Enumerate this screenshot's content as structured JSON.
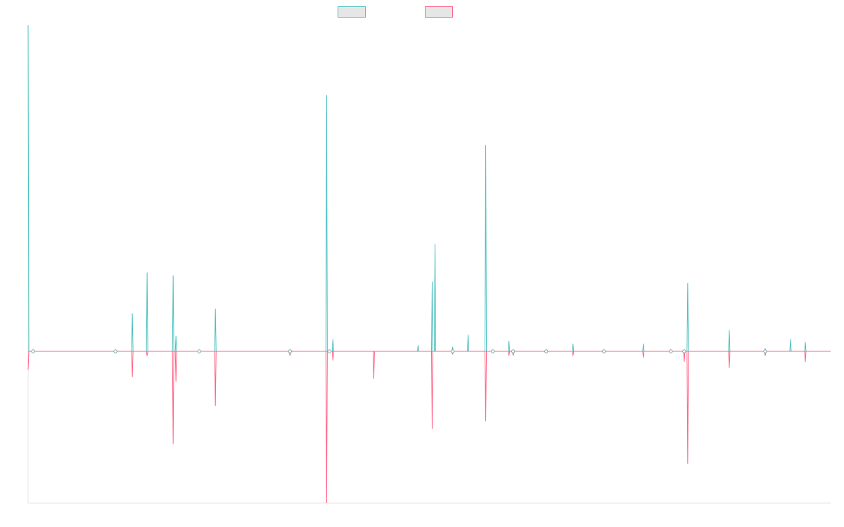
{
  "chart_data": {
    "type": "line",
    "title": "",
    "xlabel": "",
    "ylabel": "",
    "ylim": [
      -100,
      100
    ],
    "grid": false,
    "legend_position": "top-center",
    "x": [
      0,
      1,
      2,
      3,
      4,
      5,
      6,
      7,
      8,
      9,
      10,
      11,
      12,
      13,
      14,
      15,
      16,
      17,
      18,
      19,
      20,
      21,
      22,
      23,
      24,
      25,
      26,
      27,
      28,
      29,
      30,
      31,
      32,
      33,
      34,
      35,
      36,
      37,
      38,
      39,
      40,
      41,
      42,
      43,
      44,
      45,
      46,
      47,
      48,
      49,
      50,
      51,
      52,
      53,
      54,
      55,
      56,
      57,
      58,
      59,
      60,
      61,
      62,
      63,
      64,
      65,
      66,
      67,
      68,
      69,
      70,
      71,
      72,
      73,
      74,
      75,
      76,
      77,
      78,
      79,
      80,
      81,
      82,
      83,
      84,
      85,
      86,
      87,
      88,
      89,
      90,
      91,
      92,
      93,
      94,
      95,
      96,
      97,
      98,
      99,
      100,
      101,
      102,
      103,
      104,
      105,
      106,
      107,
      108,
      109,
      110,
      111,
      112,
      113,
      114,
      115,
      116,
      117,
      118,
      119,
      120,
      121,
      122,
      123,
      124,
      125,
      126,
      127,
      128,
      129,
      130,
      131,
      132,
      133,
      134,
      135,
      136,
      137,
      138,
      139,
      140,
      141,
      142,
      143,
      144,
      145,
      146,
      147,
      148,
      149,
      150,
      151,
      152,
      153,
      154,
      155,
      156,
      157,
      158,
      159,
      160,
      161,
      162,
      163,
      164,
      165,
      166,
      167,
      168,
      169,
      170,
      171,
      172,
      173,
      174,
      175,
      176,
      177,
      178,
      179,
      180,
      181,
      182,
      183,
      184,
      185,
      186,
      187,
      188,
      189,
      190,
      191,
      192,
      193,
      194,
      195,
      196,
      197,
      198,
      199,
      200,
      201,
      202,
      203,
      204,
      205,
      206,
      207,
      208,
      209,
      210,
      211,
      212,
      213,
      214,
      215,
      216,
      217,
      218,
      219,
      220,
      221,
      222,
      223,
      224,
      225,
      226,
      227,
      228,
      229,
      230,
      231,
      232,
      233,
      234,
      235,
      236,
      237,
      238,
      239,
      240,
      241,
      242,
      243,
      244,
      245,
      246,
      247,
      248,
      249,
      250,
      251,
      252,
      253,
      254,
      255,
      256,
      257,
      258,
      259,
      260,
      261,
      262,
      263,
      264,
      265,
      266,
      267,
      268,
      269,
      270,
      271,
      272,
      273,
      274,
      275,
      276,
      277,
      278,
      279,
      280,
      281,
      282,
      283,
      284,
      285,
      286,
      287,
      288,
      289,
      290,
      291,
      292,
      293,
      294,
      295,
      296,
      297,
      298,
      299,
      300,
      301,
      302,
      303,
      304,
      305,
      306,
      307,
      308,
      309,
      310,
      311,
      312,
      313,
      314,
      315,
      316,
      317,
      318,
      319,
      320,
      321,
      322,
      323,
      324,
      325,
      326,
      327,
      328,
      329,
      330,
      331,
      332,
      333,
      334,
      335,
      336,
      337,
      338,
      339,
      340,
      341,
      342,
      343,
      344,
      345,
      346,
      347,
      348,
      349,
      350,
      351,
      352,
      353,
      354,
      355,
      356,
      357,
      358,
      359,
      360,
      361,
      362,
      363,
      364,
      365,
      366,
      367,
      368,
      369,
      370,
      371,
      372,
      373,
      374,
      375,
      376,
      377,
      378,
      379,
      380,
      381,
      382,
      383,
      384,
      385,
      386,
      387,
      388,
      389,
      390,
      391,
      392,
      393,
      394,
      395,
      396,
      397,
      398,
      399,
      400,
      401,
      402,
      403,
      404,
      405,
      406,
      407,
      408,
      409,
      410,
      411,
      412,
      413,
      414,
      415,
      416,
      417,
      418,
      419,
      420,
      421,
      422,
      423,
      424,
      425,
      426,
      427,
      428,
      429,
      430,
      431,
      432,
      433,
      434,
      435,
      436,
      437,
      438,
      439,
      440,
      441,
      442,
      443,
      444,
      445,
      446,
      447,
      448,
      449,
      450,
      451,
      452,
      453,
      454,
      455,
      456,
      457,
      458,
      459,
      460,
      461,
      462,
      463,
      464,
      465,
      466,
      467,
      468,
      469,
      470,
      471,
      472,
      473,
      474,
      475,
      476,
      477,
      478,
      479,
      480,
      481,
      482,
      483,
      484,
      485,
      486,
      487,
      488,
      489,
      490,
      491,
      492,
      493,
      494,
      495,
      496,
      497,
      498,
      499,
      500,
      501,
      502,
      503,
      504,
      505,
      506,
      507,
      508,
      509,
      510,
      511,
      512,
      513,
      514,
      515,
      516,
      517,
      518,
      519,
      520,
      521,
      522,
      523,
      524,
      525,
      526,
      527,
      528,
      529,
      530,
      531,
      532,
      533,
      534,
      535,
      536,
      537,
      538,
      539,
      540,
      541,
      542,
      543,
      544,
      545,
      546,
      547,
      548,
      549,
      550,
      551,
      552,
      553,
      554,
      555,
      556,
      557,
      558,
      559,
      560,
      561,
      562,
      563,
      564,
      565,
      566,
      567,
      568,
      569,
      570,
      571,
      572,
      573,
      574,
      575,
      576,
      577,
      578,
      579,
      580,
      581,
      582,
      583,
      584,
      585,
      586,
      587,
      588,
      589,
      590,
      591,
      592,
      593,
      594,
      595,
      596,
      597,
      598,
      599,
      600,
      601,
      602,
      603,
      604,
      605,
      606,
      607,
      608,
      609,
      610,
      611,
      612,
      613,
      614,
      615,
      616,
      617,
      618,
      619,
      620,
      621,
      622,
      623,
      624,
      625,
      626,
      627,
      628,
      629,
      630,
      631,
      632,
      633,
      634,
      635,
      636,
      637,
      638,
      639,
      640,
      641,
      642,
      643,
      644,
      645,
      646,
      647,
      648,
      649,
      650,
      651,
      652,
      653,
      654,
      655,
      656,
      657,
      658,
      659,
      660,
      661,
      662,
      663,
      664,
      665,
      666,
      667,
      668,
      669,
      670,
      671,
      672,
      673,
      674,
      675,
      676,
      677,
      678,
      679,
      680,
      681,
      682,
      683,
      684,
      685,
      686,
      687,
      688,
      689,
      690,
      691,
      692,
      693,
      694,
      695,
      696,
      697,
      698,
      699,
      700,
      701,
      702,
      703,
      704,
      705,
      706,
      707,
      708,
      709,
      710,
      711,
      712,
      713,
      714,
      715,
      716,
      717,
      718,
      719,
      720,
      721,
      722,
      723,
      724,
      725,
      726,
      727,
      728,
      729,
      730,
      731,
      732,
      733,
      734,
      735,
      736,
      737,
      738,
      739,
      740,
      741,
      742,
      743,
      744,
      745,
      746,
      747,
      748,
      749,
      750,
      751,
      752,
      753,
      754,
      755,
      756,
      757,
      758,
      759,
      760,
      761,
      762,
      763,
      764,
      765,
      766,
      767,
      768,
      769,
      770,
      771,
      772,
      773,
      774,
      775,
      776,
      777,
      778,
      779,
      780,
      781,
      782,
      783,
      784,
      785,
      786,
      787,
      788,
      789,
      790,
      791,
      792,
      793,
      794,
      795,
      796,
      797,
      798,
      799,
      800,
      801,
      802,
      803,
      804,
      805,
      806,
      807,
      808,
      809,
      810,
      811,
      812,
      813,
      814,
      815,
      816,
      817,
      818,
      819,
      820,
      821,
      822,
      823,
      824,
      825,
      826,
      827,
      828,
      829,
      830,
      831,
      832,
      833,
      834,
      835,
      836,
      837,
      838,
      839,
      840,
      841,
      842,
      843,
      844,
      845,
      846,
      847,
      848,
      849,
      850,
      851,
      852,
      853,
      854,
      855,
      856,
      857,
      858,
      859,
      860,
      861,
      862,
      863,
      864,
      865,
      866,
      867,
      868,
      869,
      870,
      871,
      872,
      873,
      874,
      875,
      876,
      877,
      878,
      879,
      880,
      881,
      882,
      883,
      884,
      885,
      886,
      887,
      888,
      889,
      890,
      891,
      892,
      893,
      894,
      895,
      896,
      897,
      898,
      899,
      900,
      901,
      902,
      903,
      904,
      905,
      906,
      907,
      908,
      909,
      910,
      911,
      912,
      913,
      914,
      915,
      916,
      917,
      918,
      919,
      920,
      921,
      922,
      923,
      924,
      925,
      926,
      927,
      928,
      929,
      930,
      931,
      932,
      933,
      934,
      935,
      936,
      937,
      938,
      939,
      940,
      941,
      942,
      943,
      944,
      945,
      946,
      947,
      948,
      949,
      950,
      951,
      952,
      953,
      954,
      955,
      956,
      957,
      958,
      959,
      960,
      961,
      962,
      963,
      964,
      965,
      966,
      967,
      968,
      969,
      970,
      971,
      972,
      973,
      974,
      975,
      976,
      977,
      978,
      979,
      980,
      981,
      982,
      983,
      984,
      985,
      986,
      987,
      988,
      989,
      990,
      991,
      992,
      993,
      994,
      995,
      996,
      997,
      998,
      999,
      1000,
      1001,
      1002,
      1003,
      1004,
      1005,
      1006,
      1007,
      1008,
      1009,
      1010,
      1011,
      1012,
      1013,
      1014,
      1015,
      1016,
      1017,
      1018,
      1019,
      1020,
      1021,
      1022,
      1023,
      1024,
      1025,
      1026,
      1027,
      1028,
      1029,
      1030,
      1031,
      1032,
      1033,
      1034,
      1035,
      1036,
      1037,
      1038,
      1039,
      1040,
      1041,
      1042,
      1043,
      1044,
      1045,
      1046,
      1047,
      1048,
      1049,
      1050,
      1051,
      1052,
      1053,
      1054,
      1055,
      1056,
      1057,
      1058,
      1059,
      1060,
      1061,
      1062,
      1063,
      1064,
      1065,
      1066,
      1067,
      1068,
      1069,
      1070,
      1071,
      1072,
      1073,
      1074,
      1075,
      1076,
      1077,
      1078,
      1079,
      1080,
      1081,
      1082,
      1083,
      1084,
      1085,
      1086,
      1087,
      1088,
      1089,
      1090,
      1091,
      1092,
      1093,
      1094,
      1095,
      1096,
      1097,
      1098,
      1099,
      1100,
      1101,
      1102,
      1103,
      1104,
      1105,
      1106,
      1107,
      1108,
      1109,
      1110,
      1111,
      1112,
      1113,
      1114,
      1115,
      1116,
      1117,
      1118,
      1119,
      1120,
      1121,
      1122,
      1123,
      1124,
      1125,
      1126,
      1127,
      1128,
      1129,
      1130,
      1131,
      1132,
      1133,
      1134,
      1135,
      1136,
      1137,
      1138,
      1139,
      1140
    ],
    "series": [
      {
        "name": "",
        "color": "#4bc0c0",
        "peaks": [
          [
            0,
            215
          ],
          [
            7,
            0
          ],
          [
            124,
            0
          ],
          [
            148,
            25
          ],
          [
            169,
            52
          ],
          [
            206,
            50
          ],
          [
            210,
            10
          ],
          [
            243,
            0
          ],
          [
            266,
            28
          ],
          [
            372,
            1
          ],
          [
            424,
            169
          ],
          [
            428,
            0
          ],
          [
            433,
            8
          ],
          [
            554,
            4
          ],
          [
            574,
            46
          ],
          [
            578,
            71
          ],
          [
            603,
            3
          ],
          [
            625,
            11
          ],
          [
            650,
            136
          ],
          [
            660,
            0
          ],
          [
            683,
            7
          ],
          [
            689,
            1
          ],
          [
            736,
            1
          ],
          [
            774,
            5
          ],
          [
            818,
            1
          ],
          [
            874,
            5
          ],
          [
            913,
            1
          ],
          [
            932,
            0
          ],
          [
            937,
            45
          ],
          [
            996,
            14
          ],
          [
            1047,
            2
          ],
          [
            1083,
            8
          ],
          [
            1104,
            6
          ]
        ]
      },
      {
        "name": "",
        "color": "#ff6384",
        "peaks": [
          [
            0,
            -12
          ],
          [
            148,
            -17
          ],
          [
            169,
            -3
          ],
          [
            206,
            -61
          ],
          [
            210,
            -20
          ],
          [
            266,
            -36
          ],
          [
            372,
            -3
          ],
          [
            424,
            -100
          ],
          [
            433,
            -6
          ],
          [
            491,
            -18
          ],
          [
            574,
            -51
          ],
          [
            603,
            -2
          ],
          [
            650,
            -46
          ],
          [
            683,
            -3
          ],
          [
            689,
            -3
          ],
          [
            774,
            -3
          ],
          [
            874,
            -4
          ],
          [
            932,
            -7
          ],
          [
            937,
            -74
          ],
          [
            996,
            -11
          ],
          [
            1047,
            -3
          ],
          [
            1104,
            -7
          ]
        ]
      }
    ],
    "small_markers_x": [
      7,
      124,
      243,
      372,
      428,
      603,
      660,
      689,
      736,
      818,
      913,
      932,
      1047
    ]
  }
}
